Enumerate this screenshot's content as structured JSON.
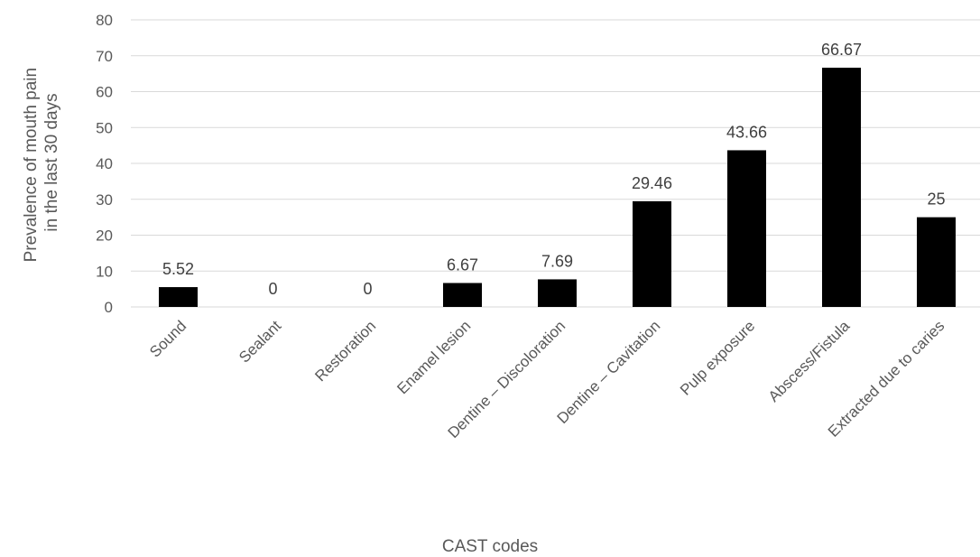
{
  "chart_data": {
    "type": "bar",
    "categories": [
      "Sound",
      "Sealant",
      "Restoration",
      "Enamel lesion",
      "Dentine – Discoloration",
      "Dentine – Cavitation",
      "Pulp exposure",
      "Abscess/Fistula",
      "Extracted due to caries"
    ],
    "values": [
      5.52,
      0,
      0,
      6.67,
      7.69,
      29.46,
      43.66,
      66.67,
      25
    ],
    "data_labels": [
      "5.52",
      "0",
      "0",
      "6.67",
      "7.69",
      "29.46",
      "43.66",
      "66.67",
      "25"
    ],
    "xlabel": "CAST codes",
    "ylabel": [
      "Prevalence of mouth pain",
      "in the last 30 days"
    ],
    "ylim": [
      0,
      80
    ],
    "yticks": [
      0,
      10,
      20,
      30,
      40,
      50,
      60,
      70,
      80
    ],
    "grid": true,
    "legend": "none",
    "bar_color": "#000000",
    "grid_color": "#d9d9d9"
  }
}
